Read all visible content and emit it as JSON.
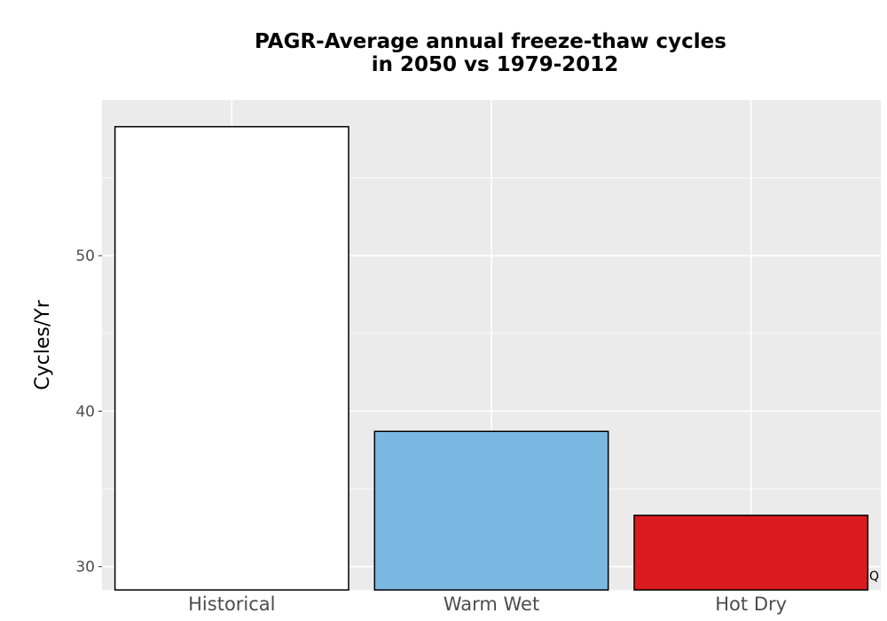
{
  "chart_data": {
    "type": "bar",
    "title_lines": [
      "PAGR-Average annual freeze-thaw cycles",
      "in 2050 vs 1979-2012"
    ],
    "xlabel": "",
    "ylabel": "Cycles/Yr",
    "categories": [
      "Historical",
      "Warm Wet",
      "Hot Dry"
    ],
    "values": [
      58.3,
      38.7,
      33.3
    ],
    "bar_colors": [
      "#ffffff",
      "#7ab8e1",
      "#da1b1f"
    ],
    "ylim": [
      28.5,
      60
    ],
    "yticks": [
      30,
      40,
      50
    ],
    "ytick_labels": [
      "30",
      "40",
      "50"
    ],
    "grid": true,
    "panel_color": "#ebebeb",
    "corner_note": "Q"
  }
}
